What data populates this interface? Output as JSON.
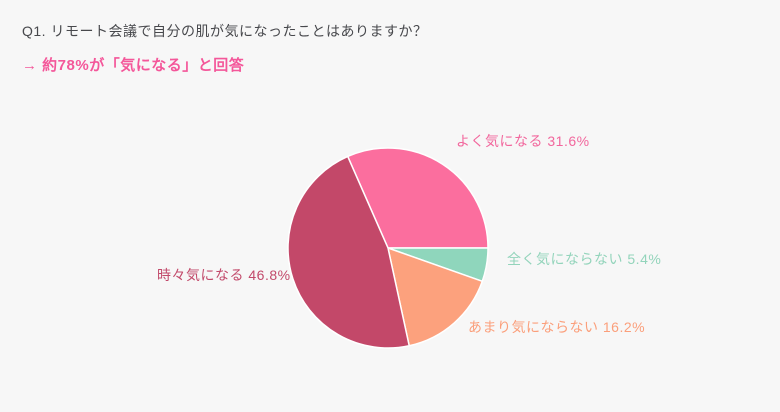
{
  "page": {
    "background_color": "#f7f7f7"
  },
  "header": {
    "question": "Q1. リモート会議で自分の肌が気になったことはありますか？",
    "question_color": "#47484c",
    "answer_highlight": "→ 約78%が「気になる」と回答",
    "answer_highlight_color": "#f4579a"
  },
  "chart_data": {
    "type": "pie",
    "title": "Q1. リモート会議で自分の肌が気になったことはありますか？",
    "annotation": "→ 約78%が「気になる」と回答",
    "start_angle_deg": -23.76,
    "direction": "clockwise",
    "slice_separator_color": "#ffffff",
    "legend_position": "around-pie",
    "segments": [
      {
        "label": "よく気になる",
        "value": 31.6,
        "display": "よく気になる 31.6%",
        "color": "#fb6e9e",
        "label_color": "#f2679d"
      },
      {
        "label": "全く気にならない",
        "value": 5.4,
        "display": "全く気にならない 5.4%",
        "color": "#8fd6bc",
        "label_color": "#93d4bb"
      },
      {
        "label": "あまり気にならない",
        "value": 16.2,
        "display": "あまり気にならない 16.2%",
        "color": "#fca17d",
        "label_color": "#fb9f7b"
      },
      {
        "label": "時々気になる",
        "value": 46.8,
        "display": "時々気になる 46.8%",
        "color": "#c34869",
        "label_color": "#c24a6b"
      }
    ]
  }
}
